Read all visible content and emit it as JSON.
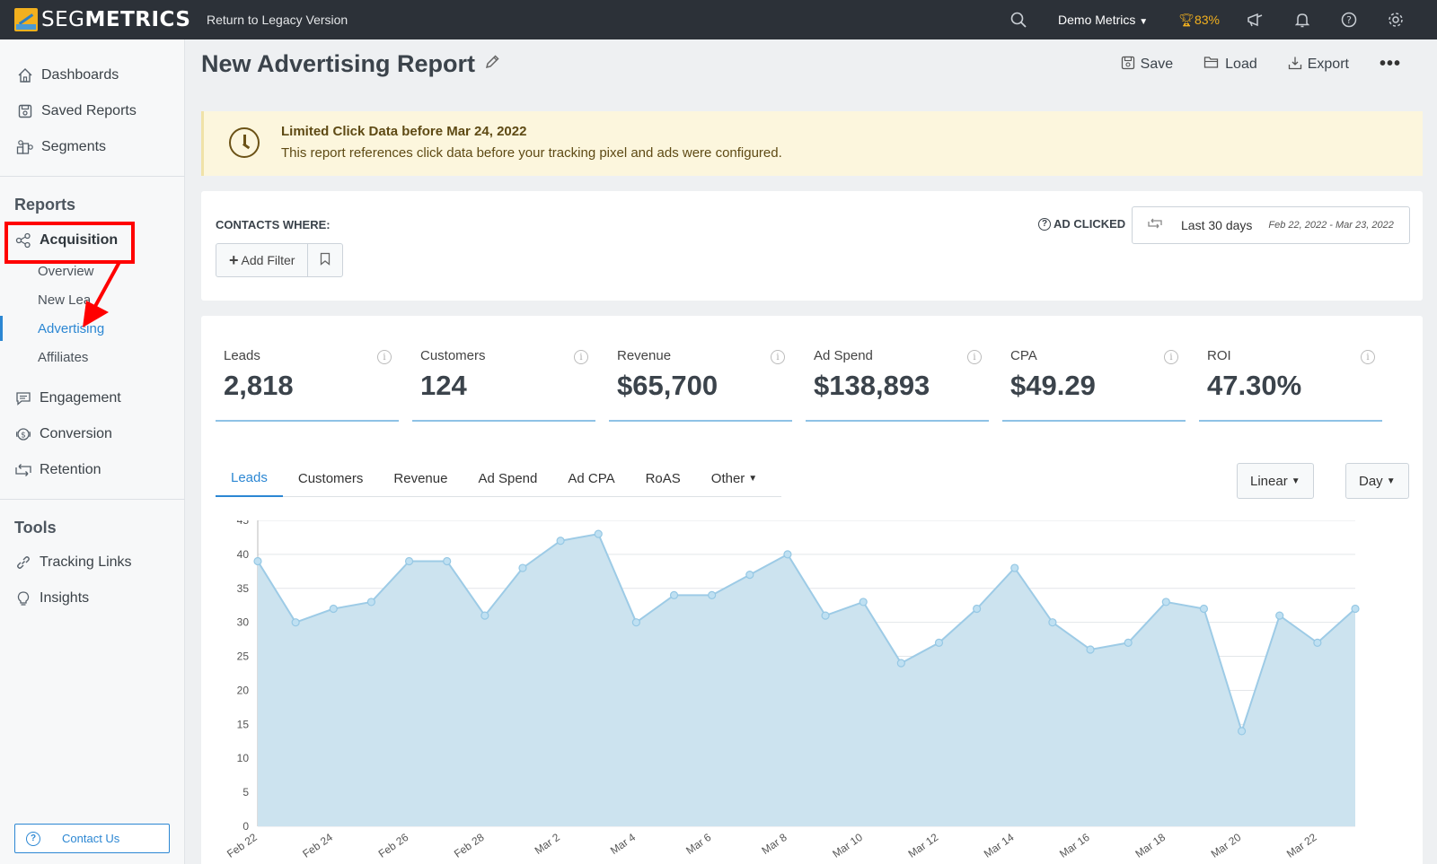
{
  "topbar": {
    "logo_light": "SEG",
    "logo_bold": "METRICS",
    "legacy_link": "Return to Legacy Version",
    "account": "Demo Metrics",
    "score": "83%",
    "icons": [
      "search-icon",
      "megaphone-icon",
      "bell-icon",
      "help-icon",
      "gear-icon"
    ]
  },
  "sidebar": {
    "top_items": [
      {
        "label": "Dashboards",
        "icon": "home-icon"
      },
      {
        "label": "Saved Reports",
        "icon": "save-icon"
      },
      {
        "label": "Segments",
        "icon": "segments-icon"
      }
    ],
    "reports_title": "Reports",
    "acquisition": "Acquisition",
    "acquisition_sub": [
      "Overview",
      "New Lea",
      "Advertising",
      "Affiliates"
    ],
    "other_reports": [
      {
        "label": "Engagement",
        "icon": "chat-icon"
      },
      {
        "label": "Conversion",
        "icon": "money-icon"
      },
      {
        "label": "Retention",
        "icon": "retention-icon"
      }
    ],
    "tools_title": "Tools",
    "tools": [
      {
        "label": "Tracking Links",
        "icon": "link-icon"
      },
      {
        "label": "Insights",
        "icon": "bulb-icon"
      }
    ],
    "contact": "Contact Us"
  },
  "header": {
    "title": "New Advertising Report",
    "save": "Save",
    "load": "Load",
    "export": "Export",
    "more": "•••"
  },
  "alert": {
    "title": "Limited Click Data before Mar 24, 2022",
    "text": "This report references click data before your tracking pixel and ads were configured."
  },
  "filters": {
    "contacts_where": "CONTACTS WHERE:",
    "add_filter": "Add Filter",
    "ad_clicked": "AD CLICKED",
    "range_label": "Last 30 days",
    "range_dates": "Feb 22, 2022 - Mar 23, 2022"
  },
  "metrics": [
    {
      "label": "Leads",
      "value": "2,818"
    },
    {
      "label": "Customers",
      "value": "124"
    },
    {
      "label": "Revenue",
      "value": "$65,700"
    },
    {
      "label": "Ad Spend",
      "value": "$138,893"
    },
    {
      "label": "CPA",
      "value": "$49.29"
    },
    {
      "label": "ROI",
      "value": "47.30%"
    }
  ],
  "tabs": [
    "Leads",
    "Customers",
    "Revenue",
    "Ad Spend",
    "Ad CPA",
    "RoAS",
    "Other"
  ],
  "controls": {
    "scale": "Linear",
    "interval": "Day"
  },
  "colors": {
    "accent": "#2c87d3",
    "area_fill": "#cce3ef",
    "area_line": "#9dcbe6",
    "alert_bg": "#fcf6dd"
  },
  "chart_data": {
    "type": "area",
    "x_tick_labels": [
      "Feb 22",
      "Feb 24",
      "Feb 26",
      "Feb 28",
      "Mar 2",
      "Mar 4",
      "Mar 6",
      "Mar 8",
      "Mar 10",
      "Mar 12",
      "Mar 14",
      "Mar 16",
      "Mar 18",
      "Mar 20",
      "Mar 22"
    ],
    "x": [
      "Feb 22",
      "Feb 23",
      "Feb 24",
      "Feb 25",
      "Feb 26",
      "Feb 27",
      "Feb 28",
      "Mar 1",
      "Mar 2",
      "Mar 3",
      "Mar 4",
      "Mar 5",
      "Mar 6",
      "Mar 7",
      "Mar 8",
      "Mar 9",
      "Mar 10",
      "Mar 11",
      "Mar 12",
      "Mar 13",
      "Mar 14",
      "Mar 15",
      "Mar 16",
      "Mar 17",
      "Mar 18",
      "Mar 19",
      "Mar 20",
      "Mar 21",
      "Mar 22",
      "Mar 23"
    ],
    "series": [
      {
        "values": [
          39,
          30,
          32,
          33,
          39,
          39,
          31,
          38,
          42,
          43,
          30,
          34,
          34,
          37,
          40,
          31,
          33,
          24,
          27,
          32,
          38,
          30,
          26,
          27,
          33,
          32,
          14,
          31,
          27,
          32
        ]
      }
    ],
    "y_ticks": [
      0,
      5,
      10,
      15,
      20,
      25,
      30,
      35,
      40,
      45
    ],
    "ylim": [
      0,
      45
    ],
    "grid": true
  }
}
